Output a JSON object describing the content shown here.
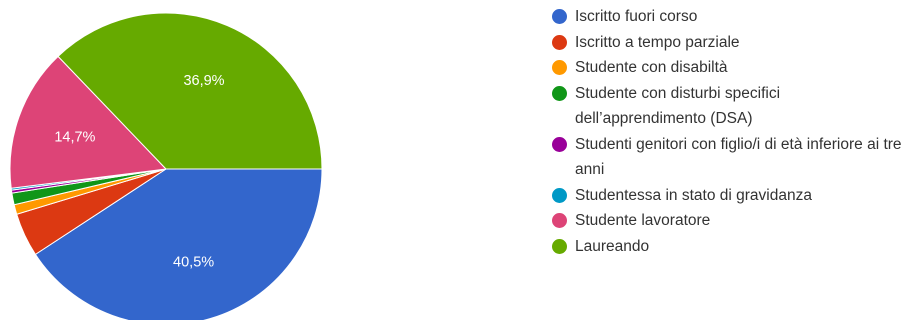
{
  "chart_data": {
    "type": "pie",
    "title": "",
    "legend_position": "right",
    "slices": [
      {
        "name": "Iscritto fuori corso",
        "value": 40.5,
        "label": "40,5%",
        "color": "#3366cc"
      },
      {
        "name": "Iscritto a tempo parziale",
        "value": 4.5,
        "label": "",
        "color": "#dc3912"
      },
      {
        "name": "Studente con disabiltà",
        "value": 1.0,
        "label": "",
        "color": "#ff9900"
      },
      {
        "name": "Studente con disturbi specifici dell’apprendimento (DSA)",
        "value": 1.2,
        "label": "",
        "color": "#109618"
      },
      {
        "name": "Studenti genitori con figlio/i di età inferiore ai tre anni",
        "value": 0.3,
        "label": "",
        "color": "#990099"
      },
      {
        "name": "Studentessa in stato di gravidanza",
        "value": 0.2,
        "label": "",
        "color": "#0099c6"
      },
      {
        "name": "Studente lavoratore",
        "value": 14.7,
        "label": "14,7%",
        "color": "#dd4477"
      },
      {
        "name": "Laureando",
        "value": 36.9,
        "label": "36,9%",
        "color": "#66aa00"
      }
    ]
  }
}
